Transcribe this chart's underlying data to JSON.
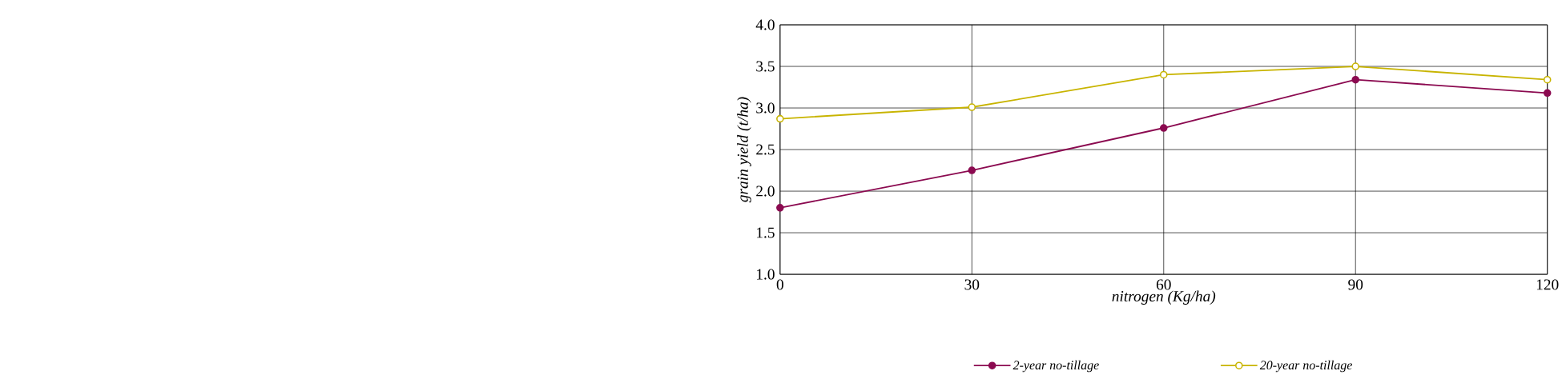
{
  "chart_data": {
    "type": "line",
    "xlabel": "nitrogen (Kg/ha)",
    "ylabel": "grain yield (t/ha)",
    "x": [
      0,
      30,
      60,
      90,
      120
    ],
    "series": [
      {
        "name": "2-year no-tillage",
        "color": "#8b0a50",
        "values": [
          1.8,
          2.25,
          2.76,
          3.34,
          3.18
        ]
      },
      {
        "name": "20-year no-tillage",
        "color": "#c8b400",
        "values": [
          2.87,
          3.01,
          3.4,
          3.5,
          3.34
        ]
      }
    ],
    "xlim": [
      0,
      120
    ],
    "xticks": [
      0,
      30,
      60,
      90,
      120
    ],
    "ylim": [
      1.0,
      4.0
    ],
    "yticks": [
      {
        "value": 1.0,
        "label": "1.0"
      },
      {
        "value": 1.5,
        "label": "1.5"
      },
      {
        "value": 2.0,
        "label": "2.0"
      },
      {
        "value": 2.5,
        "label": "2.5"
      },
      {
        "value": 3.0,
        "label": "3.0"
      },
      {
        "value": 3.5,
        "label": "3.5"
      },
      {
        "value": 4.0,
        "label": "4.0"
      }
    ],
    "grid": true,
    "legend": "bottom",
    "marker": "circle",
    "line_style": "solid"
  }
}
